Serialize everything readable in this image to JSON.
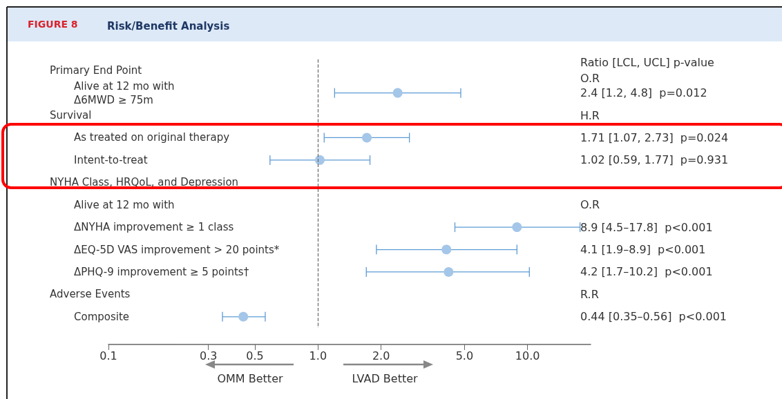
{
  "chart_data": {
    "type": "scatter",
    "orientation": "horizontal",
    "title": "Risk/Benefit Analysis",
    "categories": [
      null,
      "Alive at 12 mo with\nΔ6MWD ≥ 75m",
      null,
      "As treated on original therapy",
      "Intent-to-treat",
      null,
      null,
      "ΔNYHA improvement ≥ 1 class",
      "ΔEQ-5D VAS improvement > 20 points*",
      "ΔPHQ-9 improvement ≥ 5 points†",
      null,
      "Composite"
    ],
    "values": [
      null,
      2.4,
      null,
      1.71,
      1.02,
      null,
      null,
      8.9,
      4.1,
      4.2,
      null,
      0.44
    ],
    "errors": [
      null,
      [
        1.2,
        4.8
      ],
      null,
      [
        1.07,
        2.73
      ],
      [
        0.59,
        1.77
      ],
      null,
      null,
      [
        4.5,
        17.8
      ],
      [
        1.9,
        8.9
      ],
      [
        1.7,
        10.2
      ],
      null,
      [
        0.35,
        0.56
      ]
    ],
    "color": "#a4c6e8",
    "marker": "circle",
    "log": "x",
    "xlim": [
      0.1,
      20
    ],
    "xticks": [
      0.1,
      0.3,
      0.5,
      {
        "value": 1,
        "label": "1.0"
      },
      {
        "value": 2,
        "label": "2.0"
      },
      {
        "value": 5,
        "label": "5.0"
      },
      {
        "value": 10,
        "label": "10.0"
      }
    ],
    "ref_lines": [
      {
        "axis": "x",
        "value": 1,
        "line_style": "dashed",
        "color": "#666666"
      }
    ],
    "annotations": [
      "FIGURE 8",
      "Primary End Point",
      "Survival",
      "NYHA Class, HRQoL, and Depression",
      "Alive at 12 mo with",
      "Adverse Events",
      "Ratio [LCL, UCL] p-value",
      "O.R",
      "H.R",
      "O.R",
      "R.R",
      "2.4 [1.2, 4.8]  p=0.012",
      "1.71 [1.07, 2.73]  p=0.024",
      "1.02 [0.59, 1.77]  p=0.931",
      "8.9 [4.5–17.8]  p<0.001",
      "4.1 [1.9–8.9]  p<0.001",
      "4.2 [1.7–10.2]  p<0.001",
      "0.44 [0.35–0.56]  p<0.001",
      "OMM Better",
      "LVAD Better"
    ]
  }
}
